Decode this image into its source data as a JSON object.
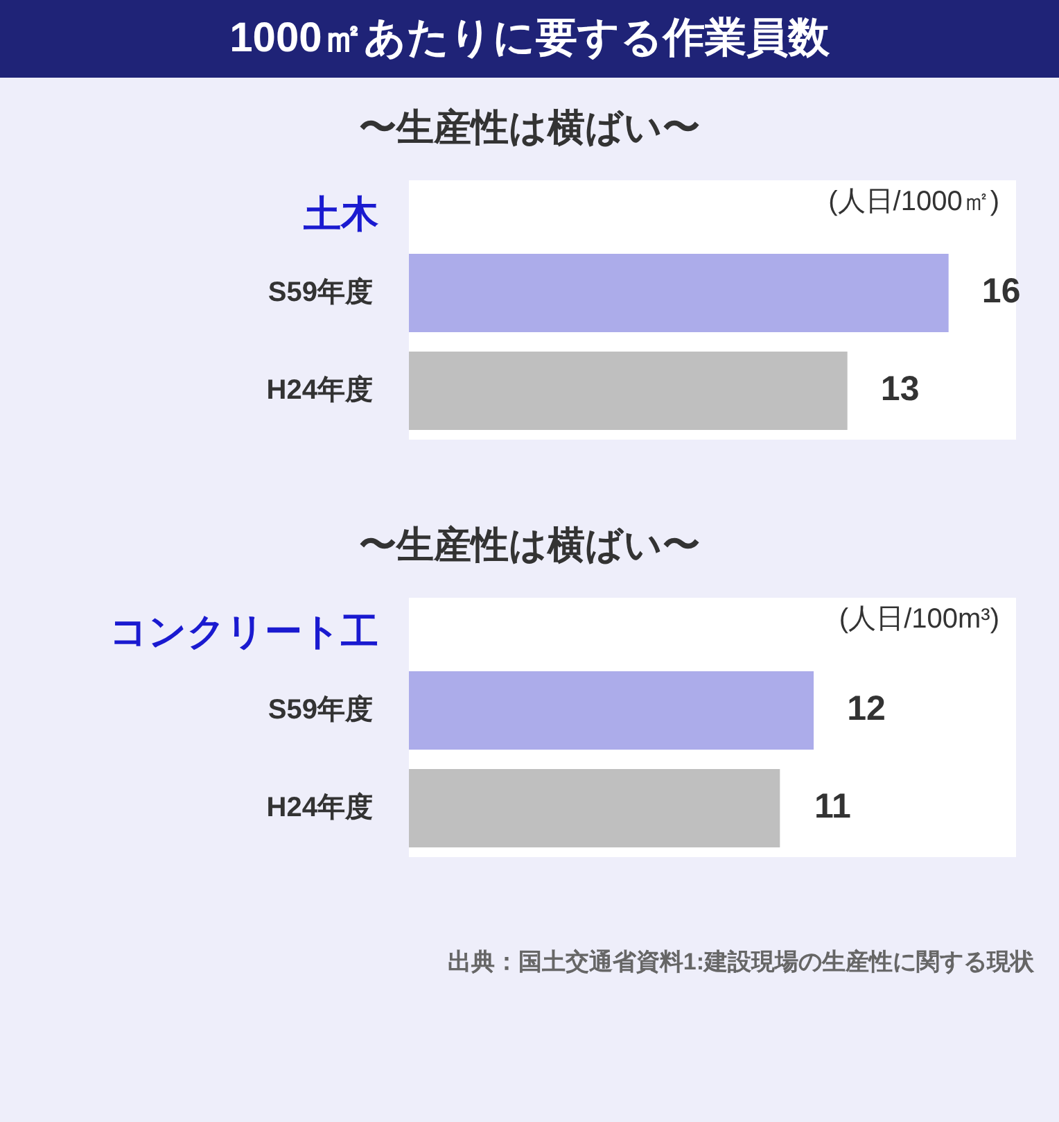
{
  "chart_data": [
    {
      "type": "bar",
      "orientation": "horizontal",
      "title": "1000㎡あたりに要する作業員数",
      "subtitle": "〜生産性は横ばい〜",
      "ylabel": "土木",
      "xlabel": "(人日/1000㎡)",
      "categories": [
        "S59年度",
        "H24年度"
      ],
      "values": [
        16,
        13
      ],
      "colors": [
        "#acacea",
        "#bfbfbf"
      ],
      "data_labels": true,
      "xlim": [
        0,
        18
      ],
      "tick_labels": "y"
    },
    {
      "type": "bar",
      "orientation": "horizontal",
      "subtitle": "〜生産性は横ばい〜",
      "ylabel": "コンクリート工",
      "xlabel": "(人日/100m³)",
      "categories": [
        "S59年度",
        "H24年度"
      ],
      "values": [
        12,
        11
      ],
      "colors": [
        "#acacea",
        "#bfbfbf"
      ],
      "data_labels": true,
      "xlim": [
        0,
        18
      ],
      "tick_labels": "y",
      "annotations": [
        "出典：国土交通省資料1:建設現場の生産性に関する現状"
      ]
    }
  ]
}
